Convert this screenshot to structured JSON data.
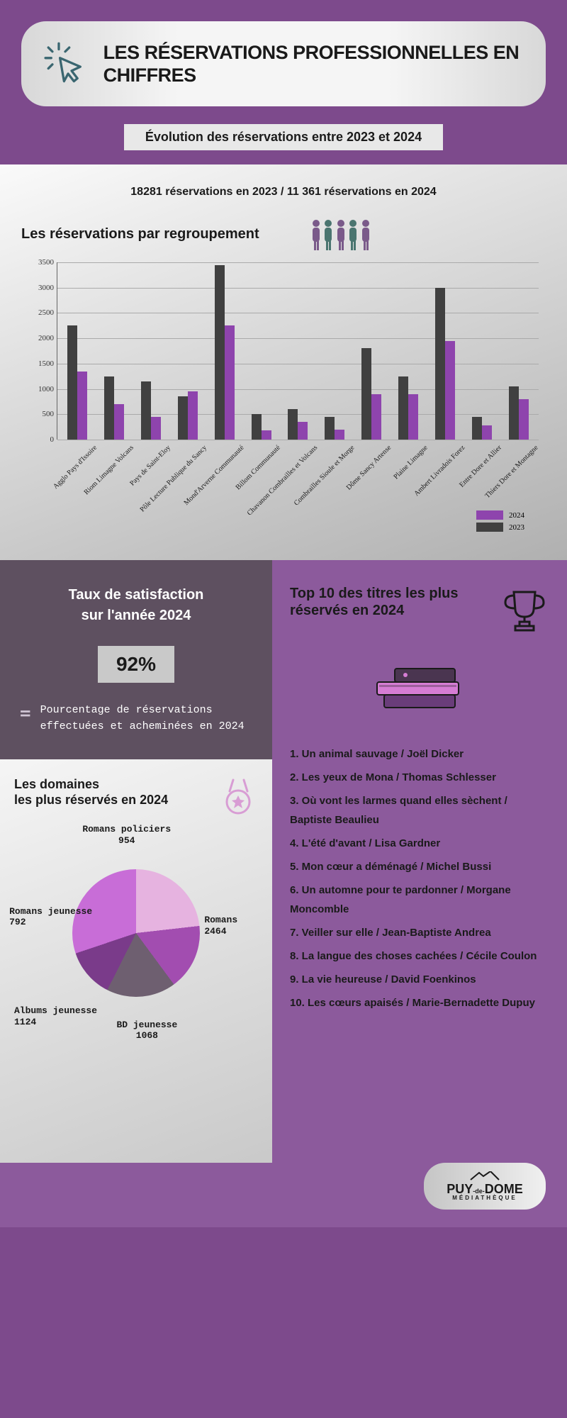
{
  "colors": {
    "purple_bg": "#7d4a8c",
    "purple_light": "#8c5a9c",
    "gray_dark": "#5e5060",
    "bar_2023": "#404040",
    "bar_2024": "#8e44ad",
    "pie_colors": [
      "#e6b3e0",
      "#a24db0",
      "#6e5f70",
      "#7a3b8a",
      "#c86dd7"
    ]
  },
  "header": {
    "title": "LES RÉSERVATIONS PROFESSIONNELLES EN CHIFFRES",
    "subtitle": "Évolution des réservations entre 2023 et 2024"
  },
  "stats": {
    "line": "18281 réservations en 2023  /  11 361 réservations en 2024"
  },
  "barChart": {
    "title": "Les réservations par regroupement",
    "ymax": 3500,
    "yticks": [
      0,
      500,
      1000,
      1500,
      2000,
      2500,
      3000,
      3500
    ],
    "categories": [
      "Agglo Pays d'Issoire",
      "Riom Limagne Volcans",
      "Pays de Saint-Eloy",
      "Pôle Lecture Publique du Sancy",
      "Mond'Arverne Communauté",
      "Billom Communauté",
      "Chavanon Combrailles et Volcans",
      "Combrailles Sioule et Morge",
      "Dôme Sancy Artense",
      "Plaine Limagne",
      "Ambert Livradois Forez",
      "Entre Dore et Allier",
      "Thiers Dore et Montagne"
    ],
    "series": {
      "2023": [
        2250,
        1250,
        1150,
        850,
        3450,
        500,
        600,
        450,
        1800,
        1250,
        3000,
        450,
        1050
      ],
      "2024": [
        1350,
        700,
        450,
        950,
        2250,
        180,
        350,
        200,
        900,
        900,
        1950,
        280,
        800
      ]
    },
    "legend": [
      {
        "label": "2024",
        "color": "#8e44ad"
      },
      {
        "label": "2023",
        "color": "#404040"
      }
    ]
  },
  "satisfaction": {
    "title": "Taux de satisfaction sur l'année 2024",
    "value": "92%",
    "desc": "Pourcentage de réservations effectuées et acheminées en 2024"
  },
  "domains": {
    "title": "Les domaines\nles plus réservés en 2024",
    "slices": [
      {
        "label": "Romans",
        "value": 2464,
        "color": "#e6b3e0"
      },
      {
        "label": "BD jeunesse",
        "value": 1068,
        "color": "#a24db0"
      },
      {
        "label": "Albums jeunesse",
        "value": 1124,
        "color": "#6e5f70"
      },
      {
        "label": "Romans jeunesse",
        "value": 792,
        "color": "#7a3b8a"
      },
      {
        "label": "Romans policiers",
        "value": 954,
        "color": "#c86dd7"
      }
    ]
  },
  "top10": {
    "title": "Top 10 des titres les plus réservés  en 2024",
    "items": [
      "Un animal sauvage / Joël Dicker",
      "Les yeux de Mona /  Thomas Schlesser",
      "Où vont les larmes quand elles sèchent / Baptiste  Beaulieu",
      "L'été d'avant / Lisa Gardner",
      "Mon cœur a déménagé / Michel Bussi",
      "Un automne pour te pardonner / Morgane Moncomble",
      "Veiller sur elle /  Jean-Baptiste Andrea",
      "La langue des choses cachées / Cécile Coulon",
      "La vie heureuse / David Foenkinos",
      "Les cœurs apaisés /  Marie-Bernadette Dupuy"
    ]
  },
  "footer": {
    "brand": "PUY-de-DOME",
    "sub": "MÉDIATHÈQUE"
  }
}
